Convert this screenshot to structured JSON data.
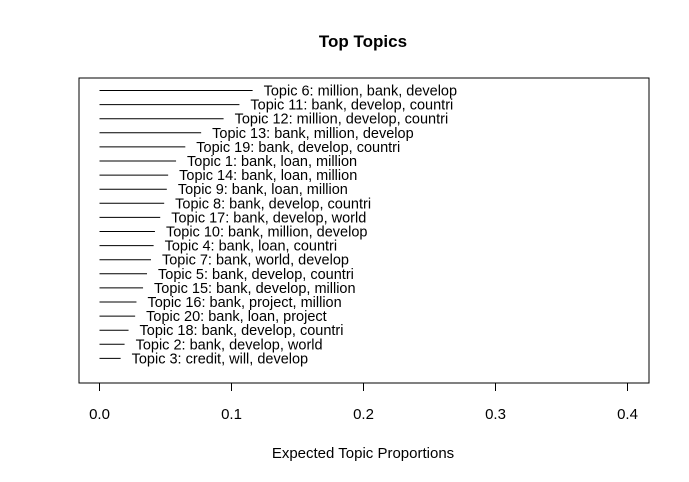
{
  "chart_data": {
    "type": "bar",
    "title": "Top Topics",
    "xlabel": "Expected Topic Proportions",
    "xlim": [
      0,
      0.4
    ],
    "xticks": [
      "0.0",
      "0.1",
      "0.2",
      "0.3",
      "0.4"
    ],
    "grid": false,
    "orientation": "horizontal",
    "bars": [
      {
        "label": "Topic 6: million, bank, develop",
        "value": 0.116
      },
      {
        "label": "Topic 11: bank, develop, countri",
        "value": 0.106
      },
      {
        "label": "Topic 12: million, develop, countri",
        "value": 0.094
      },
      {
        "label": "Topic 13: bank, million, develop",
        "value": 0.077
      },
      {
        "label": "Topic 19: bank, develop, countri",
        "value": 0.065
      },
      {
        "label": "Topic 1: bank, loan, million",
        "value": 0.058
      },
      {
        "label": "Topic 14: bank, loan, million",
        "value": 0.052
      },
      {
        "label": "Topic 9: bank, loan, million",
        "value": 0.051
      },
      {
        "label": "Topic 8: bank, develop, countri",
        "value": 0.049
      },
      {
        "label": "Topic 17: bank, develop, world",
        "value": 0.046
      },
      {
        "label": "Topic 10: bank, million, develop",
        "value": 0.042
      },
      {
        "label": "Topic 4: bank, loan, countri",
        "value": 0.041
      },
      {
        "label": "Topic 7: bank, world, develop",
        "value": 0.039
      },
      {
        "label": "Topic 5: bank, develop, countri",
        "value": 0.036
      },
      {
        "label": "Topic 15: bank, develop, million",
        "value": 0.033
      },
      {
        "label": "Topic 16: bank, project, million",
        "value": 0.028
      },
      {
        "label": "Topic 20: bank, loan, project",
        "value": 0.027
      },
      {
        "label": "Topic 18: bank, develop, countri",
        "value": 0.022
      },
      {
        "label": "Topic 2: bank, develop, world",
        "value": 0.019
      },
      {
        "label": "Topic 3: credit, will, develop",
        "value": 0.016
      }
    ]
  }
}
